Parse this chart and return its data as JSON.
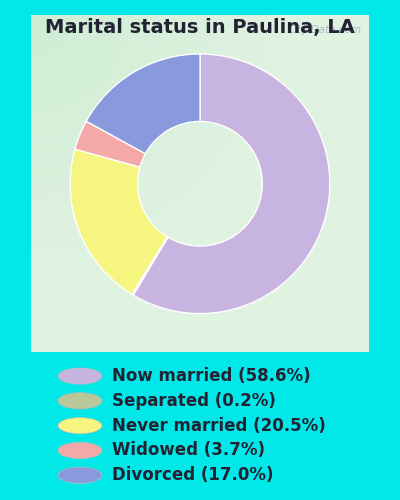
{
  "title": "Marital status in Paulina, LA",
  "slices": [
    58.6,
    0.2,
    20.5,
    3.7,
    17.0
  ],
  "labels": [
    "Now married (58.6%)",
    "Separated (0.2%)",
    "Never married (20.5%)",
    "Widowed (3.7%)",
    "Divorced (17.0%)"
  ],
  "colors": [
    "#c8b4e0",
    "#b8c898",
    "#f5f580",
    "#f5a8a8",
    "#8899dd"
  ],
  "background_outer": "#00e8e8",
  "background_inner_color1": "#c8e8d0",
  "background_inner_color2": "#e8f5ee",
  "title_fontsize": 14,
  "legend_fontsize": 12,
  "donut_width": 0.52,
  "watermark": "City-Data.com"
}
